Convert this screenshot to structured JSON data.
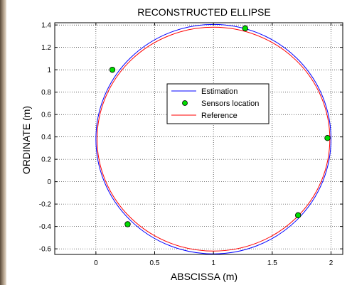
{
  "chart_data": {
    "type": "line",
    "title": "RECONSTRUCTED ELLIPSE",
    "xlabel": "ABSCISSA (m)",
    "ylabel": "ORDINATE (m)",
    "xlim": [
      -0.35,
      2.1
    ],
    "ylim": [
      -0.65,
      1.42
    ],
    "xticks": [
      0,
      0.5,
      1,
      1.5,
      2
    ],
    "xtick_labels": [
      "0",
      "0.5",
      "1",
      "1.5",
      "2"
    ],
    "yticks": [
      -0.6,
      -0.4,
      -0.2,
      0,
      0.2,
      0.4,
      0.6,
      0.8,
      1,
      1.2,
      1.4
    ],
    "ytick_labels": [
      "-0.6",
      "-0.4",
      "-0.2",
      "0",
      "0.2",
      "0.4",
      "0.6",
      "0.8",
      "1",
      "1.2",
      "1.4"
    ],
    "grid": true,
    "legend_position": "center",
    "series": [
      {
        "name": "Estimation",
        "kind": "ellipse",
        "center": [
          1.0,
          0.38
        ],
        "rx": 1.0,
        "ry": 1.025,
        "color": "#0000ff"
      },
      {
        "name": "Sensors location",
        "kind": "points",
        "color": "#00dd00",
        "x": [
          0.14,
          1.27,
          1.97,
          1.72,
          0.27
        ],
        "y": [
          1.0,
          1.37,
          0.39,
          -0.3,
          -0.38
        ]
      },
      {
        "name": "Reference",
        "kind": "ellipse",
        "center": [
          1.0,
          0.38
        ],
        "rx": 0.99,
        "ry": 1.0,
        "color": "#ff0000"
      }
    ]
  }
}
